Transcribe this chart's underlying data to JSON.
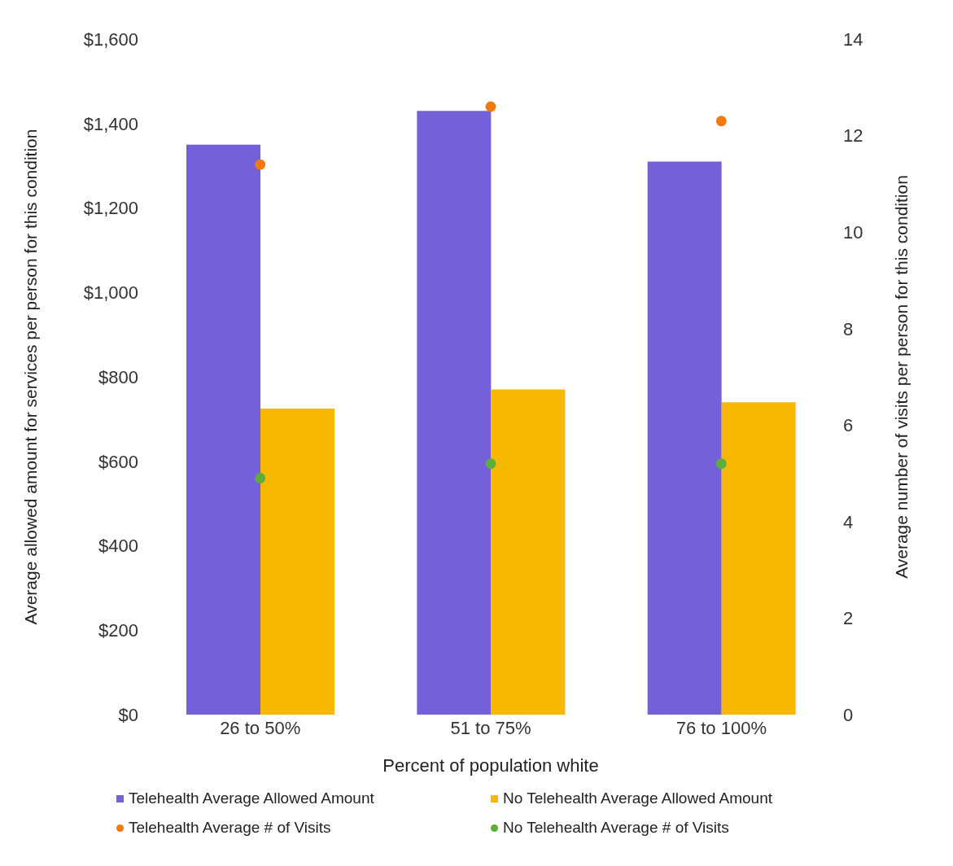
{
  "chart_data": {
    "type": "bar",
    "xlabel": "Percent of population white",
    "ylabel": "Average allowed amount for services per person for this condition",
    "y2label": "Average number of visits per person for this condition",
    "categories": [
      "26 to 50%",
      "51 to 75%",
      "76 to 100%"
    ],
    "series": [
      {
        "name": "Telehealth Average Allowed Amount",
        "type": "bar",
        "color": "#7460d8",
        "values": [
          1350,
          1430,
          1310
        ]
      },
      {
        "name": "No Telehealth Average Allowed Amount",
        "type": "bar",
        "color": "#f6b800",
        "values": [
          725,
          770,
          740
        ]
      },
      {
        "name": "Telehealth Average # of Visits",
        "type": "scatter",
        "axis": "y2",
        "color": "#f07a10",
        "x": [
          "26 to 50%",
          "51 to 75%",
          "76 to 100%"
        ],
        "values": [
          11.4,
          12.6,
          12.3
        ]
      },
      {
        "name": "No Telehealth Average # of Visits",
        "type": "scatter",
        "axis": "y2",
        "color": "#5cad3c",
        "x": [
          "26 to 50%",
          "51 to 75%",
          "76 to 100%"
        ],
        "values": [
          4.9,
          5.2,
          5.2
        ]
      }
    ],
    "ylim": [
      0,
      1600
    ],
    "yticks": [
      {
        "value": 0,
        "label": "$0"
      },
      {
        "value": 200,
        "label": "$200"
      },
      {
        "value": 400,
        "label": "$400"
      },
      {
        "value": 600,
        "label": "$600"
      },
      {
        "value": 800,
        "label": "$800"
      },
      {
        "value": 1000,
        "label": "$1,000"
      },
      {
        "value": 1200,
        "label": "$1,200"
      },
      {
        "value": 1400,
        "label": "$1,400"
      },
      {
        "value": 1600,
        "label": "$1,600"
      }
    ],
    "y2lim": [
      0,
      14
    ],
    "y2ticks": [
      0,
      2,
      4,
      6,
      8,
      10,
      12,
      14
    ],
    "marker": "circle",
    "grid": false,
    "legend": "bottom"
  }
}
